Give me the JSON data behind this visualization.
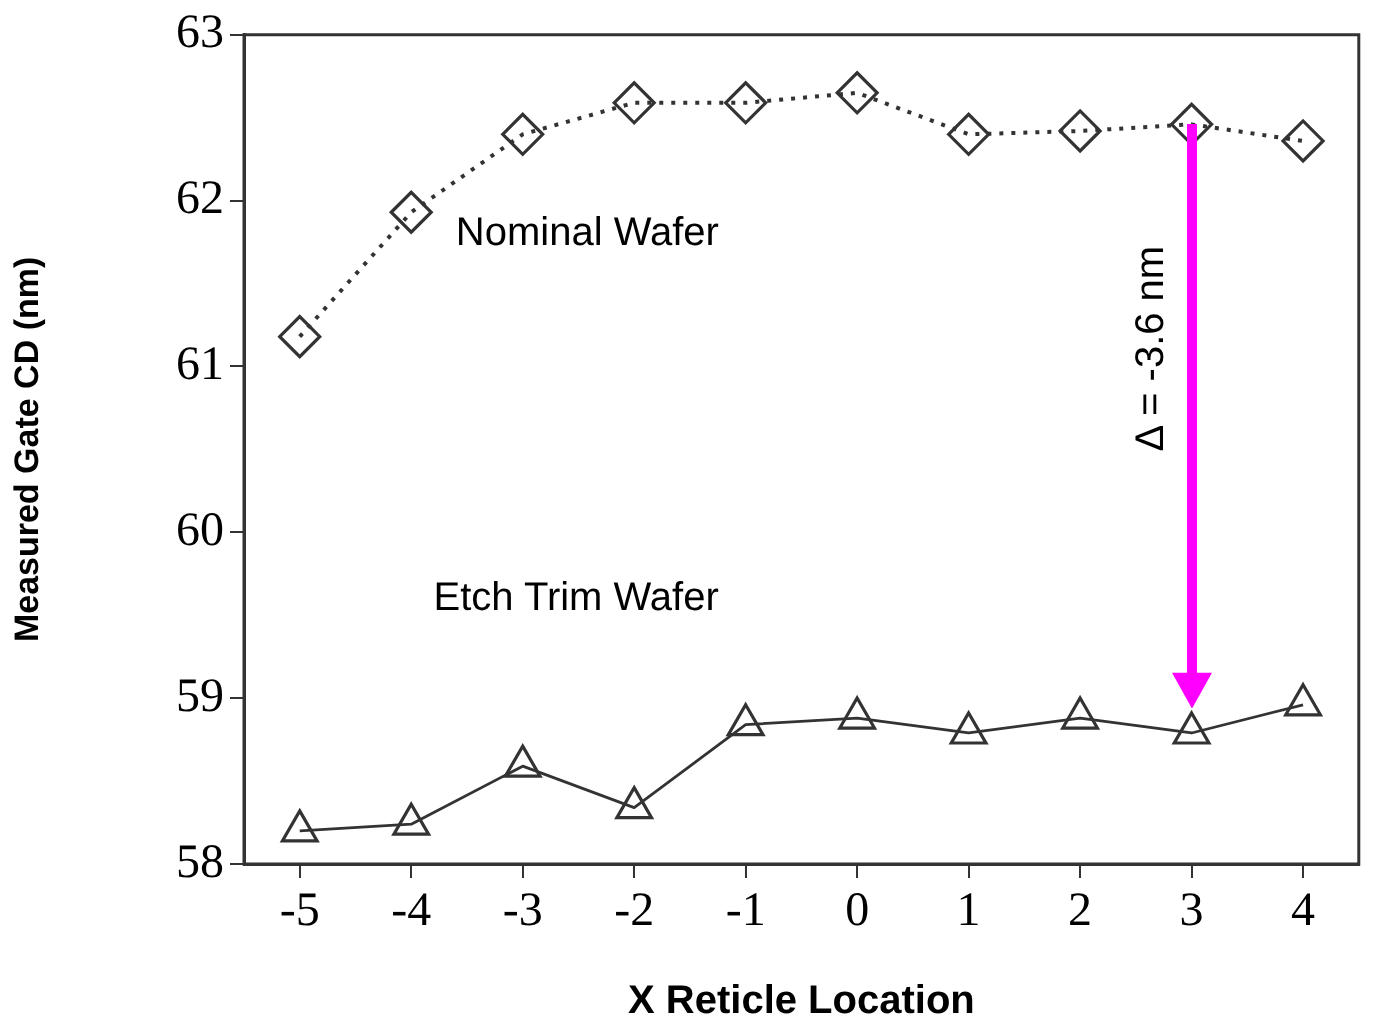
{
  "chart_data": {
    "type": "line",
    "xlabel": "X Reticle Location",
    "ylabel": "Measured Gate CD (nm)",
    "x": [
      -5,
      -4,
      -3,
      -2,
      -1,
      0,
      1,
      2,
      3,
      4
    ],
    "series": [
      {
        "name": "Nominal Wafer",
        "color": "#333333",
        "marker": "diamond",
        "line_style": "dotted",
        "values": [
          61.18,
          61.93,
          62.4,
          62.59,
          62.59,
          62.65,
          62.4,
          62.42,
          62.46,
          62.36
        ]
      },
      {
        "name": "Etch Trim Wafer",
        "color": "#333333",
        "marker": "triangle",
        "line_style": "solid",
        "values": [
          58.2,
          58.24,
          58.59,
          58.34,
          58.84,
          58.88,
          58.79,
          58.88,
          58.79,
          58.96
        ]
      }
    ],
    "xlim": [
      -5.5,
      4.5
    ],
    "xticks": [
      -5,
      -4,
      -3,
      -2,
      -1,
      0,
      1,
      2,
      3,
      4
    ],
    "ylim": [
      58,
      63
    ],
    "yticks": [
      58,
      59,
      60,
      61,
      62,
      63
    ],
    "grid": false,
    "legend": false,
    "annotations": [
      "Δ = -3.6 nm"
    ]
  }
}
